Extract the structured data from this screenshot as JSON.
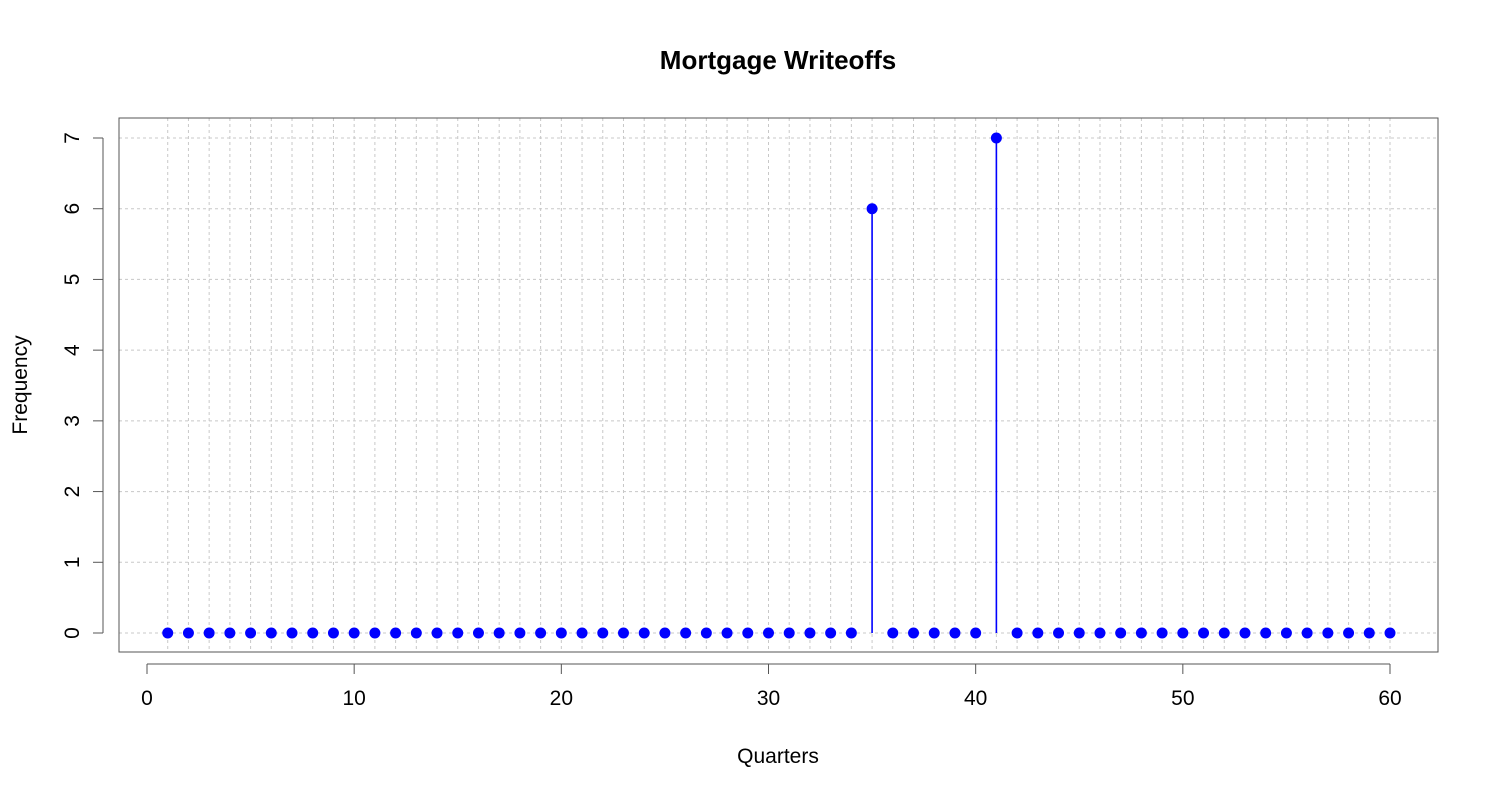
{
  "chart_data": {
    "type": "lollipop",
    "title": "Mortgage Writeoffs",
    "xlabel": "Quarters",
    "ylabel": "Frequency",
    "x": [
      1,
      2,
      3,
      4,
      5,
      6,
      7,
      8,
      9,
      10,
      11,
      12,
      13,
      14,
      15,
      16,
      17,
      18,
      19,
      20,
      21,
      22,
      23,
      24,
      25,
      26,
      27,
      28,
      29,
      30,
      31,
      32,
      33,
      34,
      35,
      36,
      37,
      38,
      39,
      40,
      41,
      42,
      43,
      44,
      45,
      46,
      47,
      48,
      49,
      50,
      51,
      52,
      53,
      54,
      55,
      56,
      57,
      58,
      59,
      60
    ],
    "values": [
      0,
      0,
      0,
      0,
      0,
      0,
      0,
      0,
      0,
      0,
      0,
      0,
      0,
      0,
      0,
      0,
      0,
      0,
      0,
      0,
      0,
      0,
      0,
      0,
      0,
      0,
      0,
      0,
      0,
      0,
      0,
      0,
      0,
      0,
      6,
      0,
      0,
      0,
      0,
      0,
      7,
      0,
      0,
      0,
      0,
      0,
      0,
      0,
      0,
      0,
      0,
      0,
      0,
      0,
      0,
      0,
      0,
      0,
      0,
      0
    ],
    "xlim": [
      0,
      60
    ],
    "ylim": [
      0,
      7
    ],
    "xticks": [
      0,
      10,
      20,
      30,
      40,
      50,
      60
    ],
    "yticks": [
      0,
      1,
      2,
      3,
      4,
      5,
      6,
      7
    ],
    "grid": true,
    "color": "#0000ff",
    "grid_color": "#c8c8c8"
  }
}
